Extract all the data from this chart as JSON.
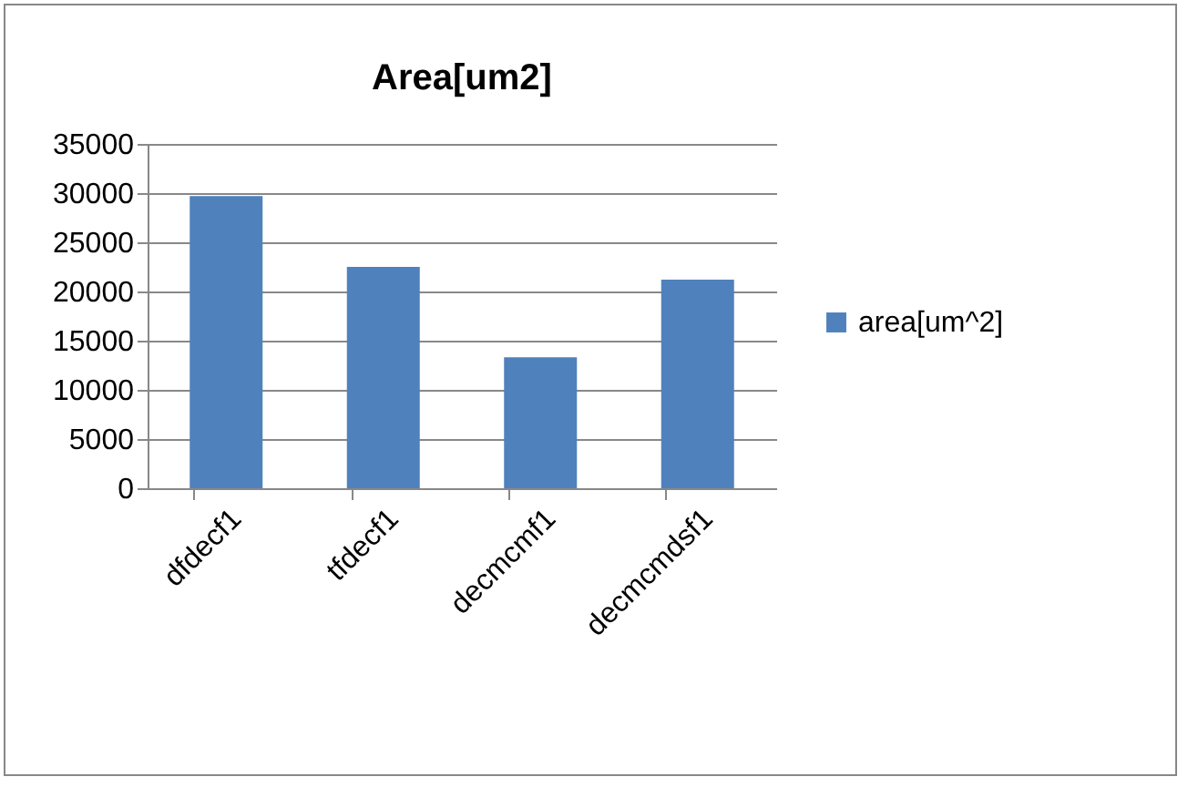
{
  "chart_data": {
    "type": "bar",
    "title": "Area[um2]",
    "categories": [
      "dfdecf1",
      "tfdecf1",
      "decmcmf1",
      "decmcmdsf1"
    ],
    "series": [
      {
        "name": "area[um^2]",
        "color": "#4f81bd",
        "values": [
          29700,
          22500,
          13300,
          21200
        ]
      }
    ],
    "ylim": [
      0,
      35000
    ],
    "yticks": [
      0,
      5000,
      10000,
      15000,
      20000,
      25000,
      30000,
      35000
    ],
    "grid": "y",
    "legend": "right"
  }
}
